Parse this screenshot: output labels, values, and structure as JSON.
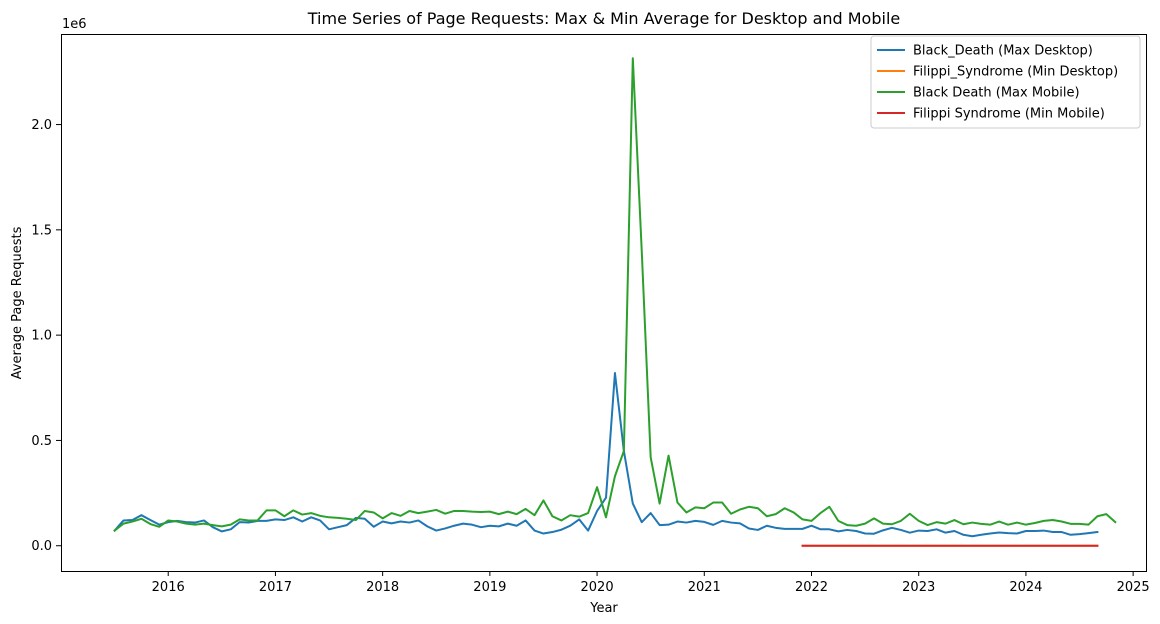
{
  "chart_data": {
    "type": "line",
    "title": "Time Series of Page Requests: Max & Min Average for Desktop and Mobile",
    "xlabel": "Year",
    "ylabel": "Average Page Requests",
    "y_offset_label": "1e6",
    "xlim": [
      2015.0,
      2025.12
    ],
    "ylim": [
      -120000,
      2430000
    ],
    "x_ticks": [
      2016,
      2017,
      2018,
      2019,
      2020,
      2021,
      2022,
      2023,
      2024,
      2025
    ],
    "x_tick_labels": [
      "2016",
      "2017",
      "2018",
      "2019",
      "2020",
      "2021",
      "2022",
      "2023",
      "2024",
      "2025"
    ],
    "y_ticks": [
      0,
      500000,
      1000000,
      1500000,
      2000000
    ],
    "y_tick_labels": [
      "0.0",
      "0.5",
      "1.0",
      "1.5",
      "2.0"
    ],
    "grid": false,
    "legend_position": "top-right",
    "series": [
      {
        "name": "Black_Death (Max Desktop)",
        "color": "#1f77b4",
        "start": [
          2015,
          7
        ],
        "values": [
          72000,
          120000,
          122000,
          145000,
          122000,
          100000,
          112000,
          118000,
          112000,
          110000,
          120000,
          88000,
          68000,
          78000,
          112000,
          110000,
          118000,
          118000,
          125000,
          122000,
          135000,
          115000,
          135000,
          120000,
          78000,
          88000,
          98000,
          132000,
          128000,
          90000,
          115000,
          106000,
          115000,
          110000,
          120000,
          92000,
          72000,
          82000,
          95000,
          105000,
          100000,
          88000,
          95000,
          92000,
          105000,
          95000,
          120000,
          72000,
          58000,
          65000,
          76000,
          95000,
          125000,
          72000,
          165000,
          228000,
          820000,
          450000,
          200000,
          112000,
          155000,
          98000,
          100000,
          115000,
          110000,
          118000,
          113000,
          99000,
          118000,
          110000,
          106000,
          82000,
          75000,
          95000,
          85000,
          80000,
          80000,
          80000,
          95000,
          78000,
          78000,
          68000,
          75000,
          70000,
          58000,
          57000,
          73000,
          85000,
          75000,
          62000,
          72000,
          70000,
          78000,
          62000,
          70000,
          52000,
          45000,
          52000,
          58000,
          63000,
          60000,
          58000,
          70000,
          70000,
          72000,
          65000,
          65000,
          52000,
          55000,
          60000,
          65000
        ]
      },
      {
        "name": "Filippi_Syndrome (Min Desktop)",
        "color": "#ff7f0e",
        "start": [
          2021,
          12
        ],
        "values": [
          5,
          5,
          5,
          5,
          5,
          5,
          5,
          5,
          5,
          5,
          5,
          5,
          5,
          5,
          5,
          5,
          5,
          5,
          5,
          5,
          5,
          5,
          5,
          5,
          5,
          5,
          5,
          5,
          5,
          5,
          5,
          5,
          5,
          5
        ]
      },
      {
        "name": "Black Death (Max Mobile)",
        "color": "#2ca02c",
        "start": [
          2015,
          7
        ],
        "values": [
          72000,
          105000,
          115000,
          128000,
          103000,
          90000,
          120000,
          115000,
          105000,
          100000,
          105000,
          98000,
          92000,
          100000,
          125000,
          120000,
          120000,
          168000,
          168000,
          140000,
          168000,
          148000,
          155000,
          142000,
          135000,
          132000,
          128000,
          122000,
          165000,
          158000,
          130000,
          155000,
          142000,
          165000,
          155000,
          162000,
          170000,
          152000,
          165000,
          165000,
          162000,
          160000,
          162000,
          150000,
          162000,
          150000,
          175000,
          145000,
          215000,
          140000,
          120000,
          145000,
          138000,
          155000,
          278000,
          135000,
          330000,
          450000,
          2315000,
          1400000,
          420000,
          200000,
          428000,
          205000,
          158000,
          182000,
          178000,
          205000,
          205000,
          152000,
          172000,
          185000,
          178000,
          140000,
          150000,
          178000,
          158000,
          125000,
          118000,
          155000,
          185000,
          118000,
          98000,
          95000,
          105000,
          130000,
          105000,
          102000,
          118000,
          152000,
          118000,
          98000,
          112000,
          105000,
          122000,
          102000,
          110000,
          104000,
          100000,
          115000,
          100000,
          110000,
          100000,
          108000,
          118000,
          122000,
          115000,
          104000,
          104000,
          100000,
          140000,
          150000,
          112000
        ]
      },
      {
        "name": "Filippi Syndrome (Min Mobile)",
        "color": "#d62728",
        "start": [
          2021,
          12
        ],
        "values": [
          5,
          5,
          5,
          5,
          5,
          5,
          5,
          5,
          5,
          5,
          5,
          5,
          5,
          5,
          5,
          5,
          5,
          5,
          5,
          5,
          5,
          5,
          5,
          5,
          5,
          5,
          5,
          5,
          5,
          5,
          5,
          5,
          5,
          5
        ]
      }
    ]
  }
}
